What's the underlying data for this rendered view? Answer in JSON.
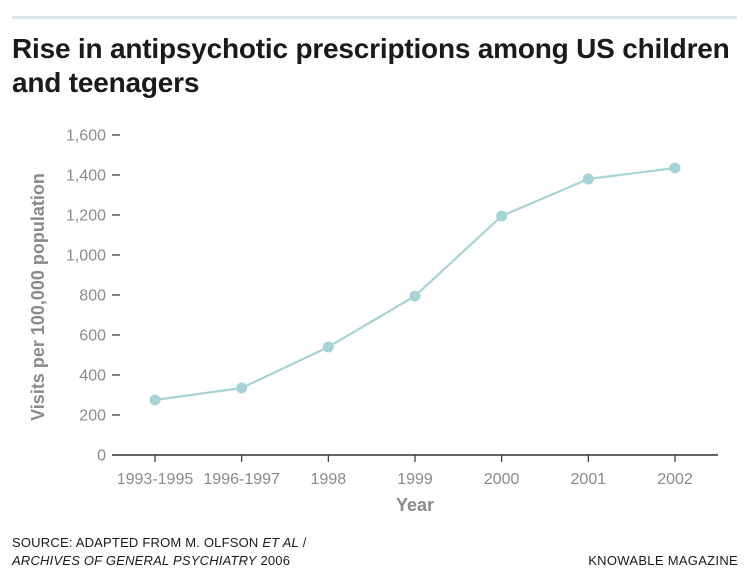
{
  "title": "Rise in antipsychotic prescriptions among US children and teenagers",
  "colors": {
    "line": "#a8d3d6",
    "marker": "#a8d3d6",
    "axis": "#333333",
    "tick_text": "#8a8a8a",
    "top_rule": "#d7e7f1"
  },
  "chart_data": {
    "type": "line",
    "title": "Rise in antipsychotic prescriptions among US children and teenagers",
    "xlabel": "Year",
    "ylabel": "Visits per 100,000 population",
    "categories": [
      "1993-1995",
      "1996-1997",
      "1998",
      "1999",
      "2000",
      "2001",
      "2002"
    ],
    "series": [
      {
        "name": "Visits per 100,000 population",
        "values": [
          275,
          335,
          540,
          795,
          1195,
          1380,
          1435
        ]
      }
    ],
    "ylim": [
      0,
      1600
    ],
    "yticks": [
      0,
      200,
      400,
      600,
      800,
      1000,
      1200,
      1400,
      1600
    ],
    "ytick_labels": [
      "0",
      "200",
      "400",
      "600",
      "800",
      "1,000",
      "1,200",
      "1,400",
      "1,600"
    ],
    "grid": false
  },
  "footer": {
    "source_prefix": "SOURCE: ADAPTED FROM M. OLFSON ",
    "source_authors_italic": "ET AL",
    "source_sep": " /",
    "source_journal_italic": "ARCHIVES OF GENERAL PSYCHIATRY",
    "source_year": " 2006",
    "credit": "KNOWABLE MAGAZINE"
  }
}
